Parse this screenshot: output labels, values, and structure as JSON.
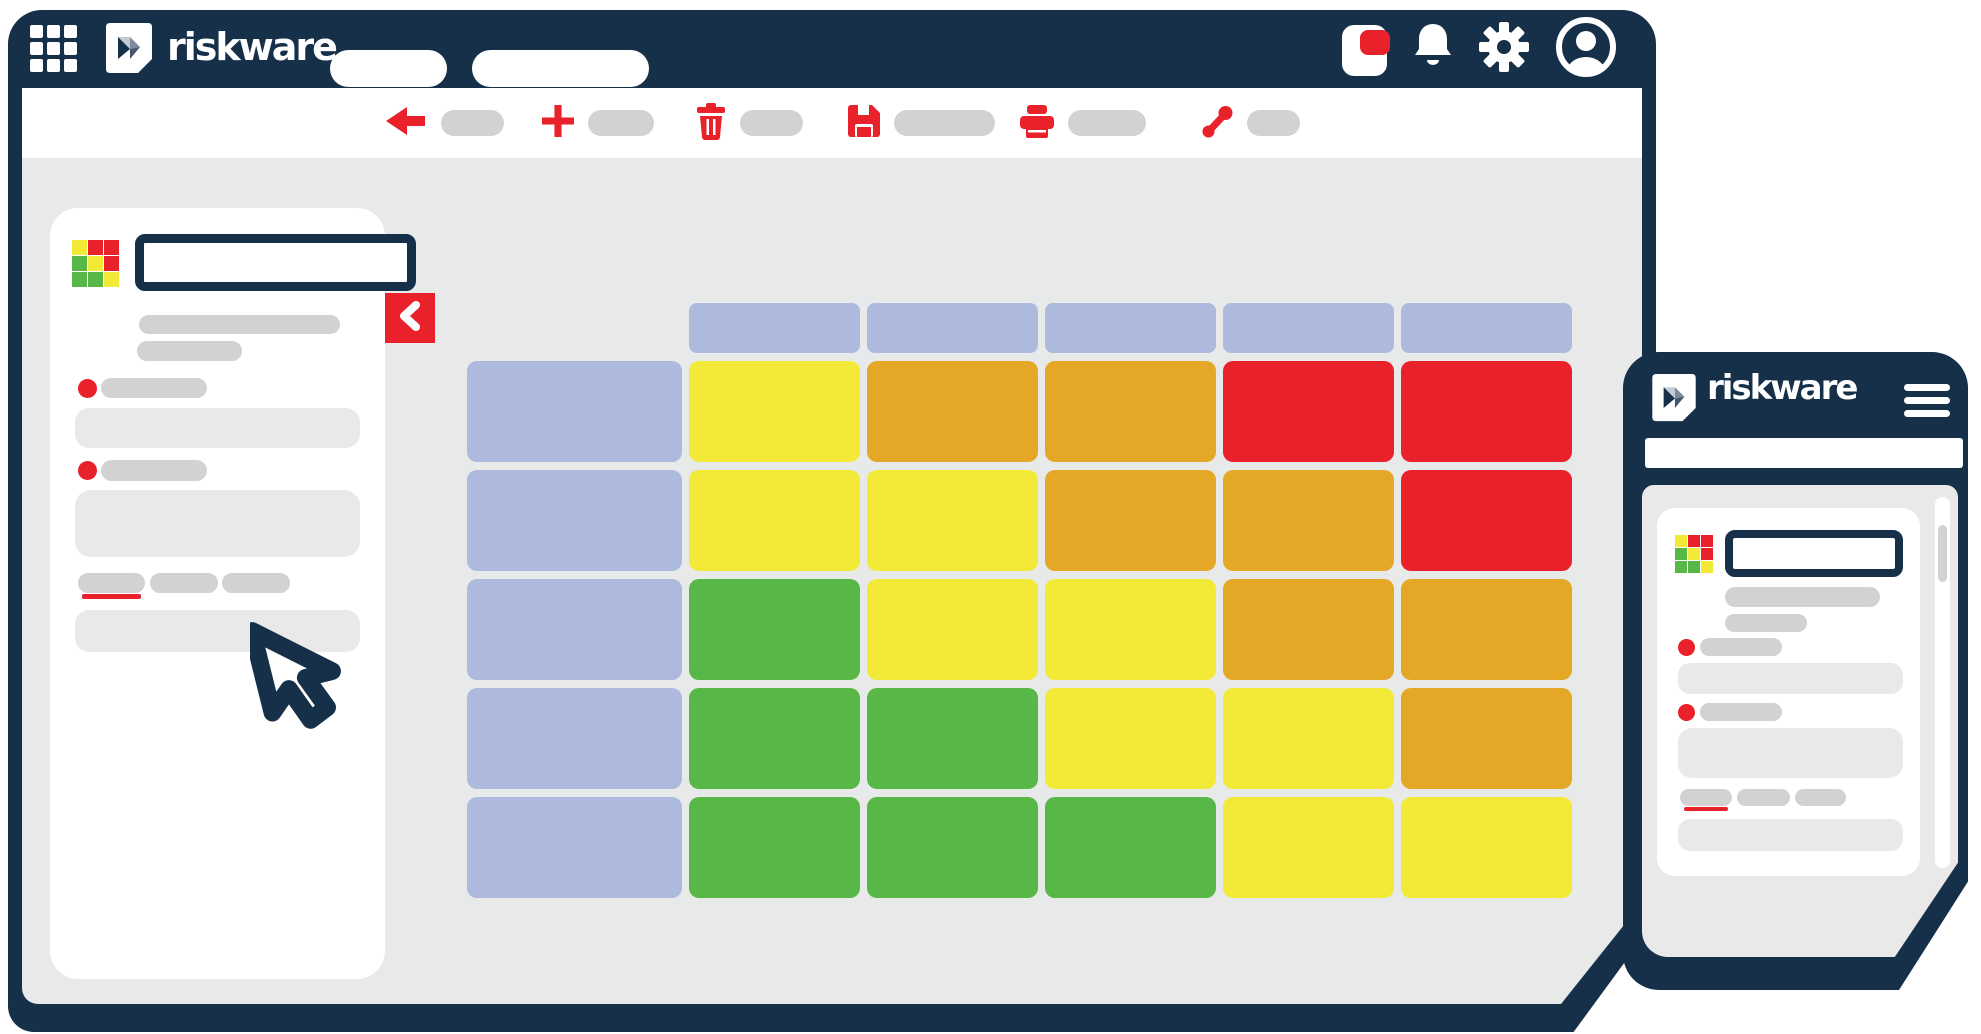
{
  "colors": {
    "navy": "#16304a",
    "red": "#e8212a",
    "yellow": "#f2ea36",
    "orange": "#e5a726",
    "green": "#57b847",
    "lavender": "#adbade",
    "pill": "#d2d2d3",
    "input": "#e9e9ea",
    "content_bg": "#e8e9e9",
    "canvas_bg": "#ffffff",
    "logo_light": "#c3cad6",
    "logo_mid": "#7e8b9d"
  },
  "top_bar": {
    "brand": "riskware",
    "icons": [
      "apps-grid-icon",
      "brand-logo",
      "app-badge-icon",
      "bell-icon",
      "gear-icon",
      "avatar-icon"
    ],
    "nav_pills": 2
  },
  "toolbar": {
    "actions": [
      "back",
      "add",
      "delete",
      "save",
      "print",
      "share"
    ]
  },
  "sidebar": {
    "logo_grid": [
      [
        "yellow",
        "red",
        "red"
      ],
      [
        "green",
        "yellow",
        "red"
      ],
      [
        "green",
        "green",
        "yellow"
      ]
    ],
    "field_slots": [
      "title",
      "label-1",
      "input-1",
      "label-2",
      "input-2",
      "input-3"
    ],
    "tabs": 3,
    "active_tab": 1
  },
  "risk_matrix": {
    "type": "heatmap",
    "columns": 5,
    "rows": 5,
    "header_color": "lavender",
    "cells": [
      [
        "yellow",
        "orange",
        "orange",
        "red",
        "red"
      ],
      [
        "yellow",
        "yellow",
        "orange",
        "orange",
        "red"
      ],
      [
        "green",
        "yellow",
        "yellow",
        "orange",
        "orange"
      ],
      [
        "green",
        "green",
        "yellow",
        "yellow",
        "orange"
      ],
      [
        "green",
        "green",
        "green",
        "yellow",
        "yellow"
      ]
    ]
  },
  "phone": {
    "brand": "riskware",
    "logo_grid": [
      [
        "yellow",
        "red",
        "red"
      ],
      [
        "green",
        "yellow",
        "red"
      ],
      [
        "green",
        "green",
        "yellow"
      ]
    ],
    "tabs": 3,
    "active_tab": 1
  }
}
